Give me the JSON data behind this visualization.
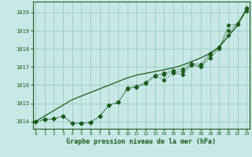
{
  "xlabel": "Graphe pression niveau de la mer (hPa)",
  "xlim": [
    -0.3,
    23.3
  ],
  "ylim": [
    1013.6,
    1020.6
  ],
  "yticks": [
    1014,
    1015,
    1016,
    1017,
    1018,
    1019,
    1020
  ],
  "xticks": [
    0,
    1,
    2,
    3,
    4,
    5,
    6,
    7,
    8,
    9,
    10,
    11,
    12,
    13,
    14,
    15,
    16,
    17,
    18,
    19,
    20,
    21,
    22,
    23
  ],
  "bg_color": "#c8e8e8",
  "grid_color": "#99ccbb",
  "line_color": "#1a5c1a",
  "smooth_line": [
    1014.0,
    1014.3,
    1014.6,
    1014.9,
    1015.2,
    1015.4,
    1015.6,
    1015.8,
    1016.0,
    1016.2,
    1016.4,
    1016.55,
    1016.65,
    1016.75,
    1016.85,
    1016.95,
    1017.1,
    1017.3,
    1017.5,
    1017.75,
    1018.1,
    1018.7,
    1019.3,
    1020.2
  ],
  "series1": [
    1014.0,
    1014.1,
    1014.15,
    1014.3,
    1013.9,
    1013.9,
    1013.95,
    1014.3,
    1014.9,
    1015.05,
    1015.8,
    1015.9,
    1016.1,
    1016.5,
    1016.3,
    1016.65,
    1016.6,
    1017.1,
    1017.0,
    1017.5,
    1018.0,
    1019.3,
    1019.35,
    1020.1
  ],
  "series2": [
    1014.0,
    1014.1,
    1014.15,
    1014.3,
    1013.9,
    1013.9,
    1013.95,
    1014.3,
    1014.9,
    1015.05,
    1015.8,
    1015.9,
    1016.1,
    1016.5,
    1016.6,
    1016.7,
    1016.75,
    1017.15,
    1017.05,
    1017.65,
    1018.05,
    1018.75,
    1019.35,
    1020.2
  ],
  "series3": [
    1014.0,
    1014.1,
    1014.15,
    1014.3,
    1013.9,
    1013.9,
    1013.95,
    1014.3,
    1014.9,
    1015.05,
    1015.85,
    1015.95,
    1016.15,
    1016.55,
    1016.65,
    1016.8,
    1016.9,
    1017.2,
    1017.15,
    1017.75,
    1018.1,
    1019.0,
    1019.4,
    1020.25
  ]
}
